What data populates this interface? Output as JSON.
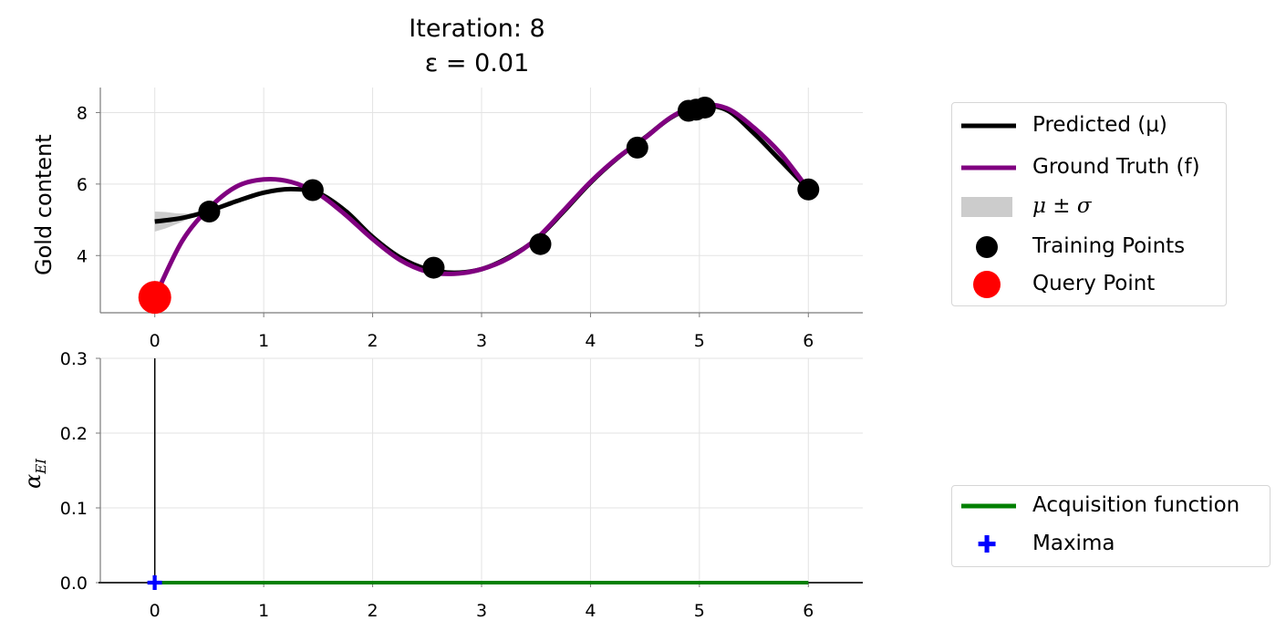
{
  "title": {
    "line1": "Iteration: 8",
    "line2": "ε = 0.01"
  },
  "top_panel": {
    "ylabel": "Gold content",
    "legend": {
      "predicted": "Predicted (μ)",
      "ground_truth": "Ground Truth (f)",
      "band": "μ ± σ",
      "training": "Training Points",
      "query": "Query Point"
    }
  },
  "bottom_panel": {
    "ylabel": "αEI",
    "ylabel_main": "α",
    "ylabel_sub": "EI",
    "legend": {
      "acquisition": "Acquisition function",
      "maxima": "Maxima"
    }
  },
  "colors": {
    "predicted": "#000000",
    "ground_truth": "#800080",
    "band": "#cccccc",
    "training": "#000000",
    "query": "#ff0000",
    "acquisition": "#008000",
    "maxima": "#0000ff"
  },
  "chart_data": [
    {
      "type": "line",
      "panel": "top",
      "xlim": [
        -0.5,
        6.5
      ],
      "ylim": [
        2.4,
        8.7
      ],
      "xticks": [
        0,
        1,
        2,
        3,
        4,
        5,
        6
      ],
      "yticks": [
        4,
        6,
        8
      ],
      "grid": true,
      "legend_position": "right",
      "ground_truth": {
        "x": [
          0,
          0.25,
          0.5,
          0.75,
          1.0,
          1.25,
          1.5,
          1.75,
          2.0,
          2.25,
          2.5,
          2.75,
          3.0,
          3.25,
          3.5,
          3.75,
          4.0,
          4.25,
          4.5,
          4.75,
          5.0,
          5.25,
          5.5,
          5.75,
          6.0
        ],
        "y": [
          2.83,
          4.4,
          5.33,
          5.93,
          6.13,
          6.06,
          5.73,
          5.14,
          4.46,
          3.88,
          3.55,
          3.49,
          3.62,
          3.93,
          4.46,
          5.25,
          6.06,
          6.74,
          7.29,
          7.89,
          8.2,
          8.12,
          7.58,
          6.84,
          5.85
        ]
      },
      "predicted": {
        "x": [
          0,
          0.25,
          0.5,
          0.75,
          1.0,
          1.25,
          1.5,
          1.75,
          2.0,
          2.25,
          2.5,
          2.75,
          3.0,
          3.25,
          3.5,
          3.75,
          4.0,
          4.25,
          4.5,
          4.75,
          5.0,
          5.25,
          5.5,
          5.75,
          6.0
        ],
        "y": [
          4.95,
          5.05,
          5.25,
          5.52,
          5.76,
          5.86,
          5.75,
          5.25,
          4.52,
          3.95,
          3.62,
          3.52,
          3.62,
          3.95,
          4.45,
          5.22,
          6.04,
          6.73,
          7.3,
          7.88,
          8.18,
          8.07,
          7.42,
          6.64,
          5.85
        ]
      },
      "band_sigma": {
        "x": [
          0,
          0.1,
          0.2,
          0.3,
          0.4,
          0.5
        ],
        "sigma": [
          0.28,
          0.23,
          0.15,
          0.08,
          0.03,
          0
        ]
      },
      "training_points": {
        "x": [
          0.5,
          1.45,
          2.56,
          3.54,
          4.43,
          4.9,
          4.97,
          5.05,
          6.0
        ],
        "y": [
          5.23,
          5.83,
          3.66,
          4.32,
          7.02,
          8.05,
          8.08,
          8.14,
          5.85
        ]
      },
      "query_point": {
        "x": 0,
        "y": 2.83
      }
    },
    {
      "type": "line",
      "panel": "bottom",
      "xlim": [
        -0.5,
        6.5
      ],
      "ylim": [
        0,
        0.3
      ],
      "xticks": [
        0,
        1,
        2,
        3,
        4,
        5,
        6
      ],
      "yticks": [
        0.0,
        0.1,
        0.2,
        0.3
      ],
      "grid": true,
      "legend_position": "right",
      "acquisition": {
        "x": [
          0,
          1,
          2,
          3,
          4,
          5,
          6
        ],
        "y": [
          0,
          0,
          0,
          0,
          0,
          0,
          0
        ]
      },
      "vertical_line_x": 0,
      "maxima": {
        "x": 0,
        "y": 0
      }
    }
  ]
}
